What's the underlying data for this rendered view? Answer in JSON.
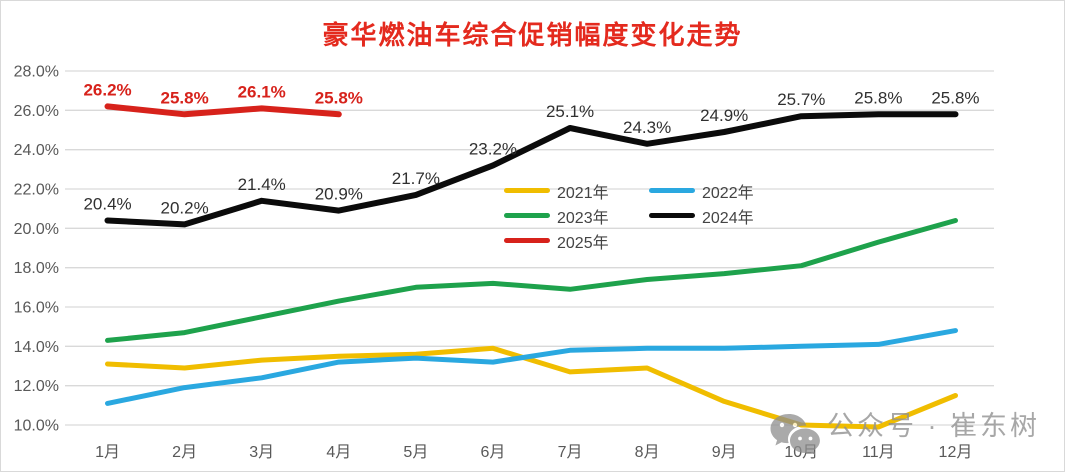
{
  "title": "豪华燃油车综合促销幅度变化走势",
  "title_color": "#e42a1e",
  "watermark": {
    "text": "公众号 · 崔东树",
    "icon": "wechat-icon"
  },
  "axis": {
    "y_tick_labels": [
      "28.0%",
      "26.0%",
      "24.0%",
      "22.0%",
      "20.0%",
      "18.0%",
      "16.0%",
      "14.0%",
      "12.0%",
      "10.0%"
    ],
    "text_color": "#595959",
    "gridline_color": "#d9d9d9"
  },
  "chart_data": {
    "type": "line",
    "title": "豪华燃油车综合促销幅度变化走势",
    "categories": [
      "1月",
      "2月",
      "3月",
      "4月",
      "5月",
      "6月",
      "7月",
      "8月",
      "9月",
      "10月",
      "11月",
      "12月"
    ],
    "ylim": [
      10,
      28
    ],
    "y_tick_step": 2,
    "grid": true,
    "legend_position": "inside-center-right",
    "series": [
      {
        "name": "2021年",
        "color": "#f0bd00",
        "width": 5,
        "values": [
          13.1,
          12.9,
          13.3,
          13.5,
          13.6,
          13.9,
          12.7,
          12.9,
          11.2,
          10.0,
          9.9,
          11.5
        ]
      },
      {
        "name": "2022年",
        "color": "#2aa8e0",
        "width": 5,
        "values": [
          11.1,
          11.9,
          12.4,
          13.2,
          13.4,
          13.2,
          13.8,
          13.9,
          13.9,
          14.0,
          14.1,
          14.8
        ]
      },
      {
        "name": "2023年",
        "color": "#1ea24c",
        "width": 5,
        "values": [
          14.3,
          14.7,
          15.5,
          16.3,
          17.0,
          17.2,
          16.9,
          17.4,
          17.7,
          18.1,
          19.3,
          20.4
        ]
      },
      {
        "name": "2024年",
        "color": "#0b0b0b",
        "width": 6,
        "values": [
          20.4,
          20.2,
          21.4,
          20.9,
          21.7,
          23.2,
          25.1,
          24.3,
          24.9,
          25.7,
          25.8,
          25.8
        ],
        "data_labels": [
          "20.4%",
          "20.2%",
          "21.4%",
          "20.9%",
          "21.7%",
          "23.2%",
          "25.1%",
          "24.3%",
          "24.9%",
          "25.7%",
          "25.8%",
          "25.8%"
        ],
        "label_color": "#303030",
        "label_bold": false
      },
      {
        "name": "2025年",
        "color": "#d7221b",
        "width": 6,
        "values": [
          26.2,
          25.8,
          26.1,
          25.8
        ],
        "data_labels": [
          "26.2%",
          "25.8%",
          "26.1%",
          "25.8%"
        ],
        "label_color": "#d7221b",
        "label_bold": true
      }
    ]
  }
}
